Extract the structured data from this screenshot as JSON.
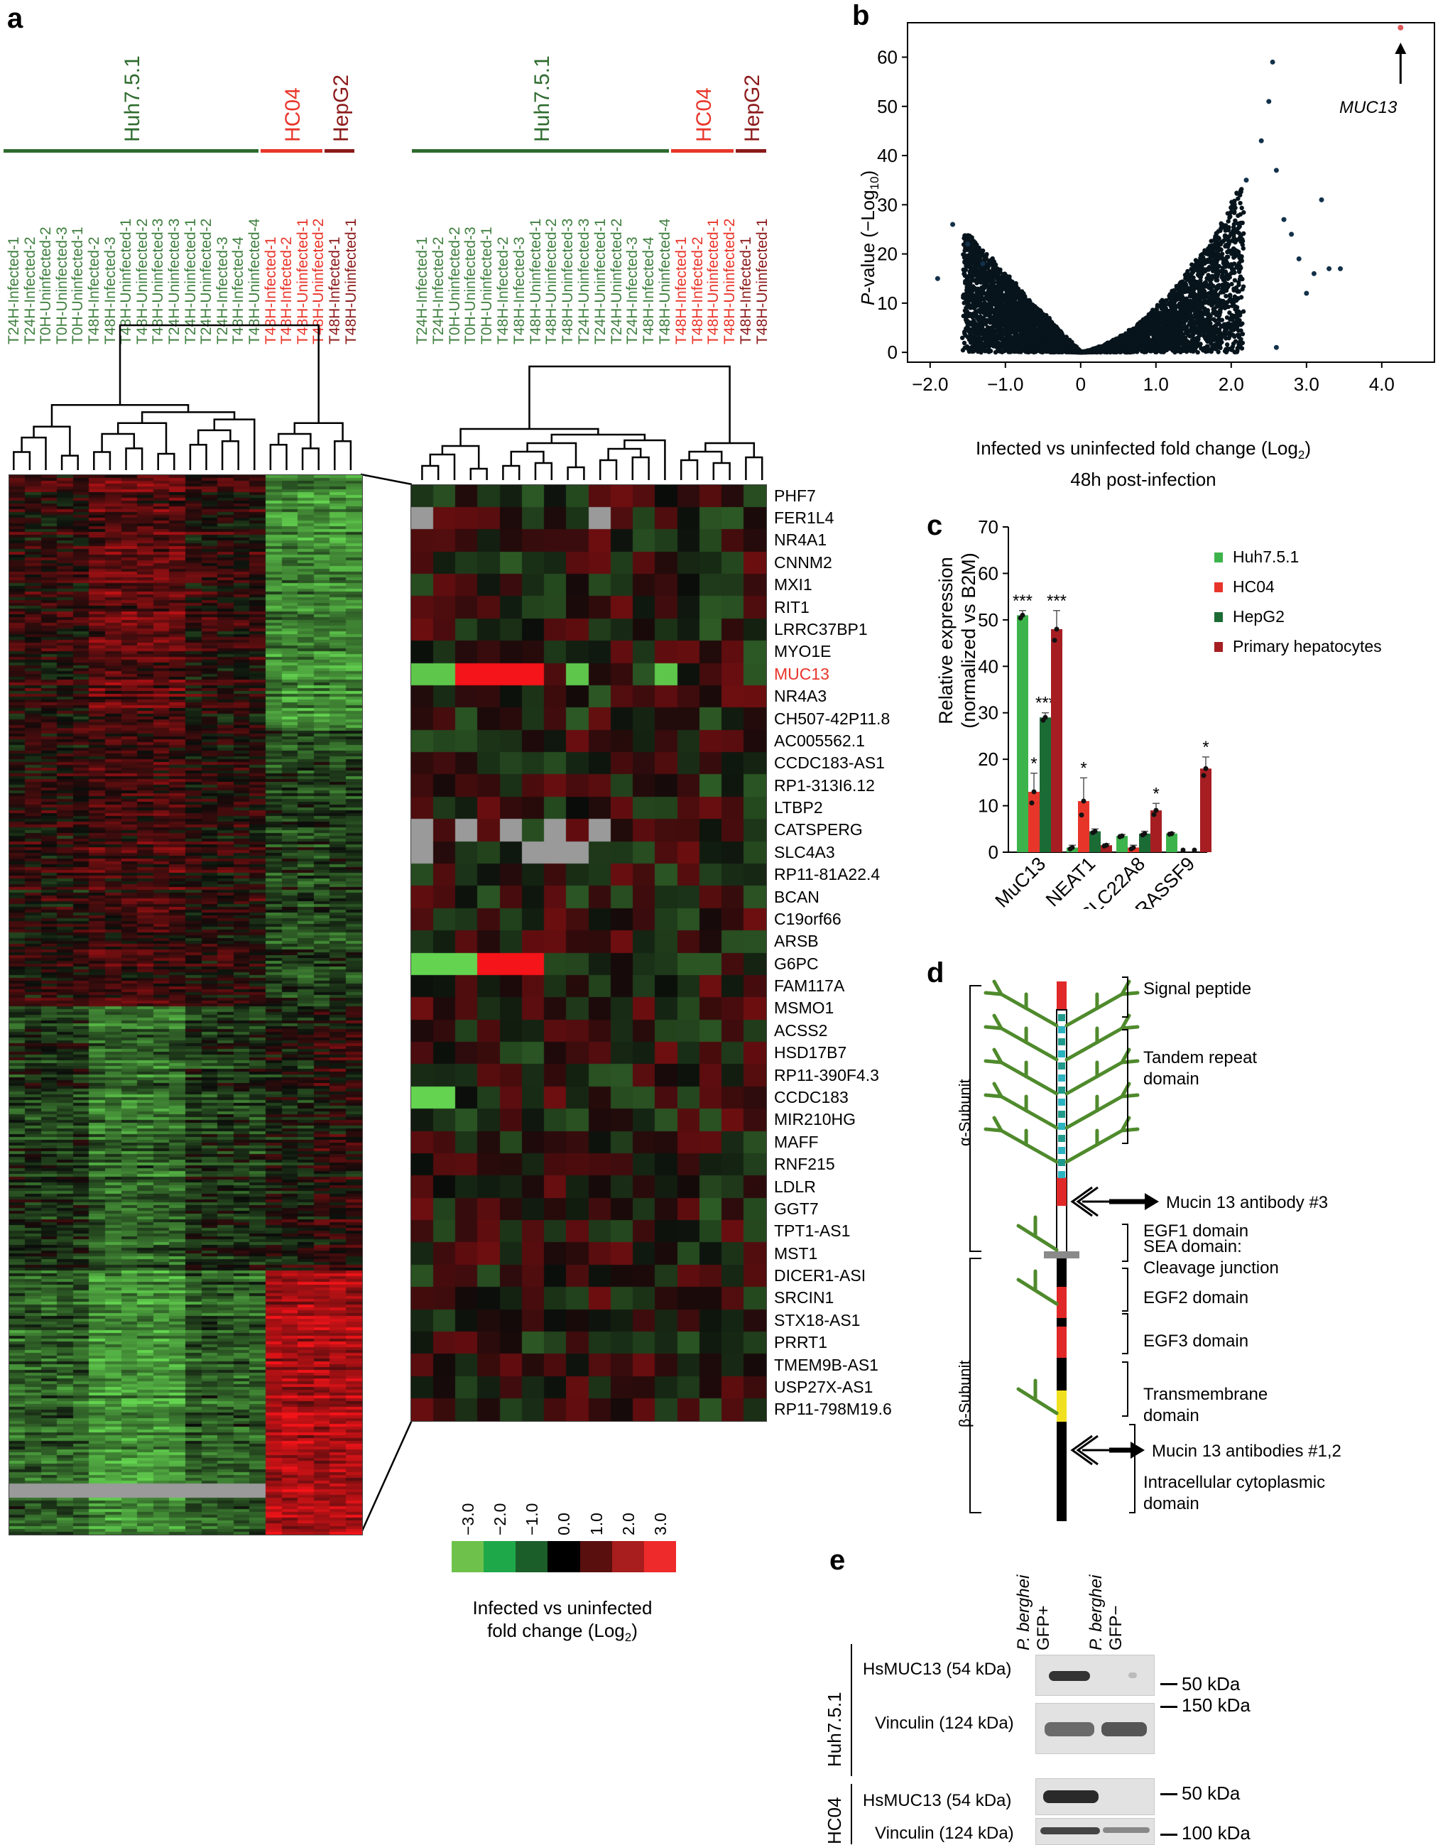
{
  "panels": {
    "a": "a",
    "b": "b",
    "c": "c",
    "d": "d",
    "e": "e"
  },
  "panel_a": {
    "groups": [
      {
        "name": "Huh7.5.1",
        "color": "#2e6b2e"
      },
      {
        "name": "HC04",
        "color": "#e8352a"
      },
      {
        "name": "HepG2",
        "color": "#8b1a1a"
      }
    ],
    "samples": [
      {
        "name": "T24H-Infected-1",
        "color": "#3f7f3f"
      },
      {
        "name": "T24H-Infected-2",
        "color": "#3f7f3f"
      },
      {
        "name": "T0H-Uninfected-2",
        "color": "#3f7f3f"
      },
      {
        "name": "T0H-Uninfected-3",
        "color": "#3f7f3f"
      },
      {
        "name": "T0H-Uninfected-1",
        "color": "#3f7f3f"
      },
      {
        "name": "T48H-Infected-2",
        "color": "#3f7f3f"
      },
      {
        "name": "T48H-Infected-3",
        "color": "#3f7f3f"
      },
      {
        "name": "T48H-Uninfected-1",
        "color": "#3f7f3f"
      },
      {
        "name": "T48H-Uninfected-2",
        "color": "#3f7f3f"
      },
      {
        "name": "T48H-Uninfected-3",
        "color": "#3f7f3f"
      },
      {
        "name": "T24H-Uninfected-3",
        "color": "#3f7f3f"
      },
      {
        "name": "T24H-Uninfected-1",
        "color": "#3f7f3f"
      },
      {
        "name": "T24H-Uninfected-2",
        "color": "#3f7f3f"
      },
      {
        "name": "T24H-Infected-3",
        "color": "#3f7f3f"
      },
      {
        "name": "T48H-Infected-4",
        "color": "#3f7f3f"
      },
      {
        "name": "T48H-Uninfected-4",
        "color": "#3f7f3f"
      },
      {
        "name": "T48H-Infected-1",
        "color": "#e8352a"
      },
      {
        "name": "T48H-Infected-2",
        "color": "#e8352a"
      },
      {
        "name": "T48H-Uninfected-1",
        "color": "#e8352a"
      },
      {
        "name": "T48H-Uninfected-2",
        "color": "#e8352a"
      },
      {
        "name": "T48H-Infected-1",
        "color": "#8b1a1a"
      },
      {
        "name": "T48H-Uninfected-1",
        "color": "#8b1a1a"
      }
    ],
    "genes": [
      "PHF7",
      "FER1L4",
      "NR4A1",
      "CNNM2",
      "MXI1",
      "RIT1",
      "LRRC37BP1",
      "MYO1E",
      "MUC13",
      "NR4A3",
      "CH507-42P11.8",
      "AC005562.1",
      "CCDC183-AS1",
      "RP1-313I6.12",
      "LTBP2",
      "CATSPERG",
      "SLC4A3",
      "RP11-81A22.4",
      "BCAN",
      "C19orf66",
      "ARSB",
      "G6PC",
      "FAM117A",
      "MSMO1",
      "ACSS2",
      "HSD17B7",
      "RP11-390F4.3",
      "CCDC183",
      "MIR210HG",
      "MAFF",
      "RNF215",
      "LDLR",
      "GGT7",
      "TPT1-AS1",
      "MST1",
      "DICER1-ASI",
      "SRCIN1",
      "STX18-AS1",
      "PRRT1",
      "TMEM9B-AS1",
      "USP27X-AS1",
      "RP11-798M19.6"
    ],
    "highlight_gene": "MUC13",
    "highlight_color": "#e8352a",
    "legend": {
      "ticks": [
        "−3.0",
        "−2.0",
        "−1.0",
        "0.0",
        "1.0",
        "2.0",
        "3.0"
      ],
      "colors": [
        "#6ec24c",
        "#1fa84a",
        "#1b5e2a",
        "#000000",
        "#5a0f0f",
        "#a81d1d",
        "#ee2a2a"
      ],
      "label_line1": "Infected vs uninfected",
      "label_line2": "fold change (Log",
      "label_sub": "2",
      "label_close": ")"
    }
  },
  "panel_b": {
    "ylabel_prefix": "P",
    "ylabel_mid": "-value (−Log",
    "ylabel_sub": "10",
    "ylabel_close": ")",
    "xlabel_line1": "Infected vs uninfected fold change (Log",
    "xlabel_sub": "2",
    "xlabel_close": ")",
    "xlabel_line2": "48h post-infection",
    "annotation": "MUC13",
    "chart_data": {
      "type": "scatter",
      "x_ticks": [
        "−2.0",
        "−1.0",
        "0",
        "1.0",
        "2.0",
        "3.0",
        "4.0"
      ],
      "y_ticks": [
        "0",
        "10",
        "20",
        "30",
        "40",
        "50",
        "60"
      ],
      "xlim": [
        -2.3,
        4.7
      ],
      "ylim": [
        -2,
        67
      ],
      "highlight_point": {
        "label": "MUC13",
        "x": 4.25,
        "y": 66,
        "color": "#e05a5a"
      },
      "outliers": [
        {
          "x": -1.9,
          "y": 15
        },
        {
          "x": -1.7,
          "y": 26
        },
        {
          "x": -1.5,
          "y": 22
        },
        {
          "x": -1.3,
          "y": 18
        },
        {
          "x": 2.55,
          "y": 59
        },
        {
          "x": 2.5,
          "y": 51
        },
        {
          "x": 2.4,
          "y": 43
        },
        {
          "x": 2.6,
          "y": 37
        },
        {
          "x": 3.2,
          "y": 31
        },
        {
          "x": 3.1,
          "y": 16
        },
        {
          "x": 3.3,
          "y": 17
        },
        {
          "x": 3.45,
          "y": 17
        },
        {
          "x": 2.8,
          "y": 24
        },
        {
          "x": 2.9,
          "y": 19
        },
        {
          "x": 2.6,
          "y": 1
        },
        {
          "x": 3.0,
          "y": 12
        },
        {
          "x": 2.2,
          "y": 35
        },
        {
          "x": 2.7,
          "y": 27
        }
      ]
    }
  },
  "panel_c": {
    "ylabel_line1": "Relative expression",
    "ylabel_line2": "(normalized vs B2M)",
    "chart_data": {
      "type": "bar",
      "categories": [
        "MuC13",
        "NEAT1",
        "SLC22A8",
        "RASSF9"
      ],
      "series": [
        {
          "name": "Huh7.5.1",
          "color": "#3cb44b",
          "values": [
            51,
            1,
            3.5,
            4
          ],
          "errors": [
            1,
            0.5,
            0.3,
            0.2
          ],
          "sig": [
            "***",
            "",
            "",
            ""
          ]
        },
        {
          "name": "HC04",
          "color": "#e8352a",
          "values": [
            13,
            11,
            1,
            0
          ],
          "errors": [
            4,
            5,
            0.5,
            0
          ],
          "sig": [
            "*",
            "*",
            "",
            ""
          ]
        },
        {
          "name": "HepG2",
          "color": "#1b6b35",
          "values": [
            29,
            4.5,
            4,
            0
          ],
          "errors": [
            1,
            0.5,
            0.5,
            0
          ],
          "sig": [
            "***",
            "",
            "",
            ""
          ]
        },
        {
          "name": "Primary hepatocytes",
          "color": "#a61e22",
          "values": [
            48,
            1.5,
            9,
            18
          ],
          "errors": [
            4,
            0.3,
            1.5,
            2.5
          ],
          "sig": [
            "***",
            "",
            "*",
            "*"
          ]
        }
      ],
      "y_ticks": [
        "0",
        "10",
        "20",
        "30",
        "40",
        "50",
        "60",
        "70"
      ],
      "ylim": [
        0,
        70
      ],
      "legend_placement": "top-right"
    }
  },
  "panel_d": {
    "labels": {
      "alpha": "α-Subunit",
      "beta": "β-Subunit",
      "signal": "Signal peptide",
      "tandem1": "Tandem repeat",
      "tandem2": "domain",
      "ab3": "Mucin 13 antibody #3",
      "egf1": "EGF1 domain",
      "sea1": "SEA domain:",
      "sea2": "Cleavage junction",
      "egf2": "EGF2 domain",
      "egf3": "EGF3 domain",
      "tm1": "Transmembrane",
      "tm2": "domain",
      "ab12": "Mucin 13 antibodies #1,2",
      "ic1": "Intracellular cytoplasmic",
      "ic2": "domain"
    }
  },
  "panel_e": {
    "lanes": [
      {
        "italic": "P. berghei",
        "plain": "GFP+"
      },
      {
        "italic": "P. berghei",
        "plain": "GFP−"
      }
    ],
    "cell_lines": [
      "Huh7.5.1",
      "HC04"
    ],
    "rows": [
      {
        "label": "HsMUC13 (54 kDa)",
        "marker": "50 kDa"
      },
      {
        "label": "Vinculin (124 kDa)",
        "marker": "150 kDa"
      },
      {
        "label": "HsMUC13 (54 kDa)",
        "marker": "50 kDa"
      },
      {
        "label": "Vinculin (124 kDa)",
        "marker": "100 kDa"
      }
    ]
  }
}
